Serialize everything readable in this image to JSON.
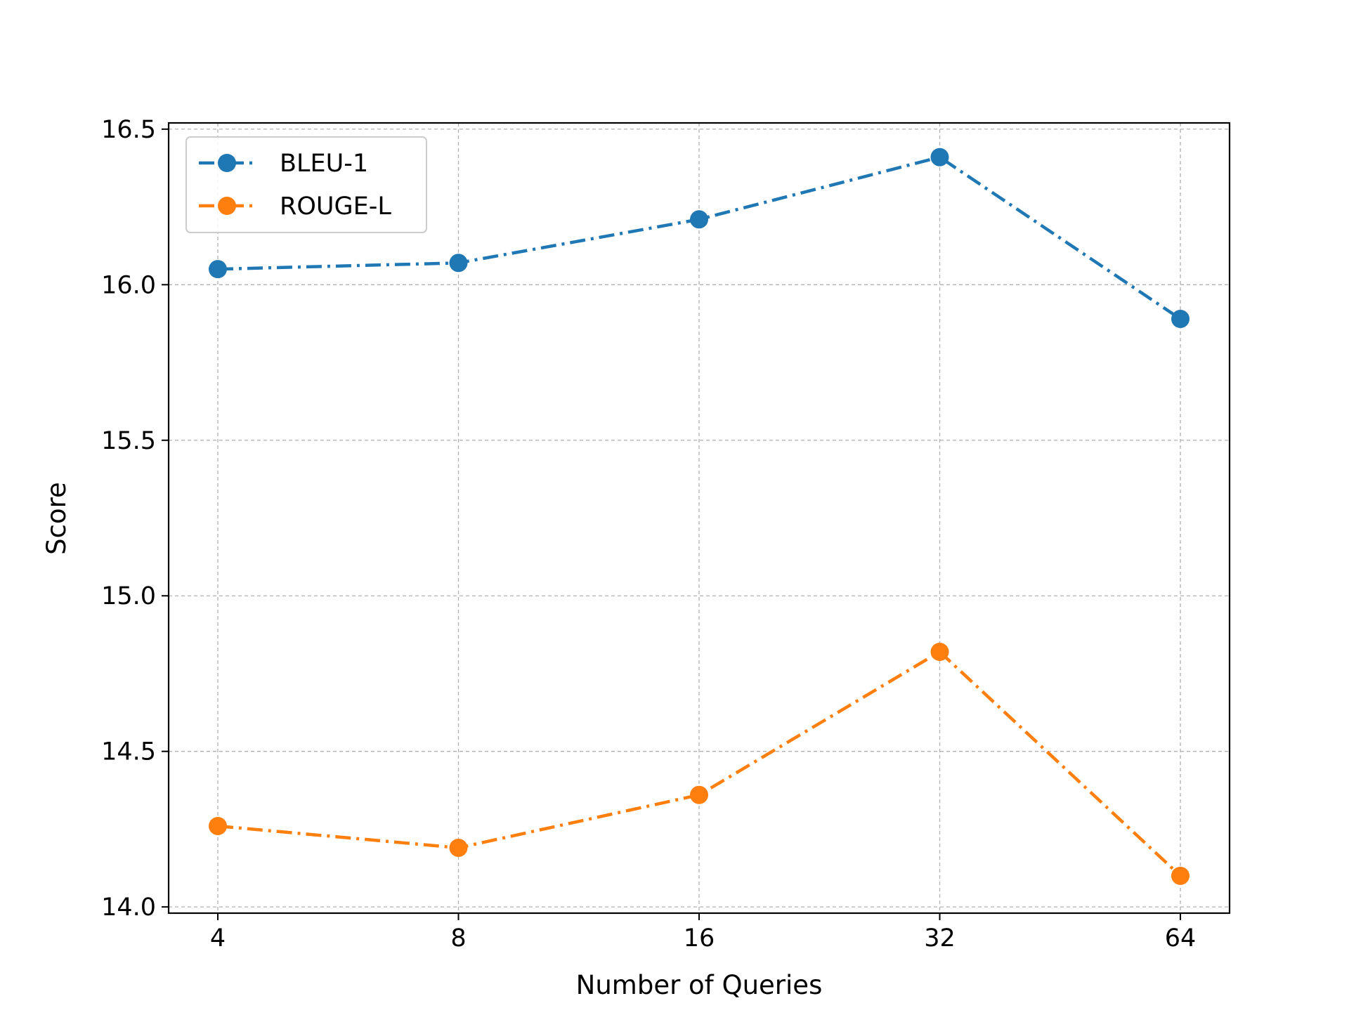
{
  "chart_data": {
    "type": "line",
    "categories": [
      "4",
      "8",
      "16",
      "32",
      "64"
    ],
    "xlabel": "Number of Queries",
    "ylabel": "Score",
    "ylim": [
      13.98,
      16.52
    ],
    "yticks": [
      "14.0",
      "14.5",
      "15.0",
      "15.5",
      "16.0",
      "16.5"
    ],
    "grid": true,
    "legend_position": "top-left",
    "series": [
      {
        "name": "BLEU-1",
        "color": "#1f77b4",
        "values": [
          16.05,
          16.07,
          16.21,
          16.41,
          15.89
        ]
      },
      {
        "name": "ROUGE-L",
        "color": "#ff7f0e",
        "values": [
          14.26,
          14.19,
          14.36,
          14.82,
          14.1
        ]
      }
    ]
  }
}
